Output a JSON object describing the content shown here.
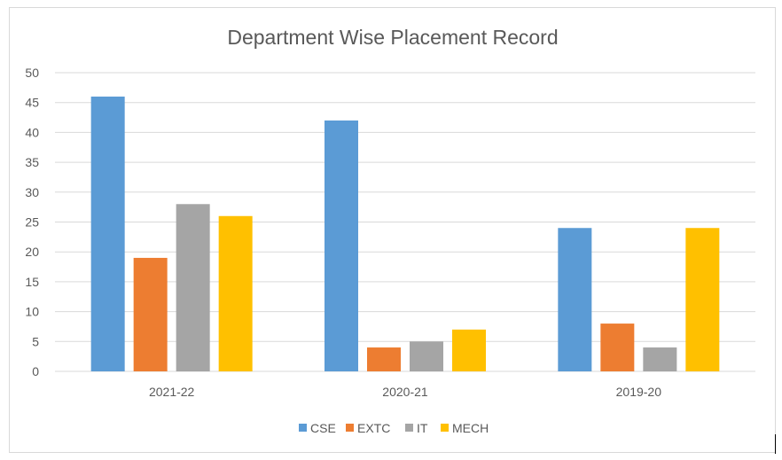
{
  "chart_data": {
    "type": "bar",
    "title": "Department Wise Placement Record",
    "xlabel": "",
    "ylabel": "",
    "categories": [
      "2021-22",
      "2020-21",
      "2019-20"
    ],
    "series": [
      {
        "name": "CSE",
        "color": "#5B9BD5",
        "values": [
          46,
          42,
          24
        ]
      },
      {
        "name": "EXTC",
        "color": "#ED7D31",
        "values": [
          19,
          4,
          8
        ]
      },
      {
        "name": "IT",
        "color": "#A5A5A5",
        "values": [
          28,
          5,
          4
        ]
      },
      {
        "name": "MECH",
        "color": "#FFC000",
        "values": [
          26,
          7,
          24
        ]
      }
    ],
    "ylim": [
      0,
      50
    ],
    "yticks": [
      0,
      5,
      10,
      15,
      20,
      25,
      30,
      35,
      40,
      45,
      50
    ],
    "grid": true,
    "legend": "bottom"
  }
}
